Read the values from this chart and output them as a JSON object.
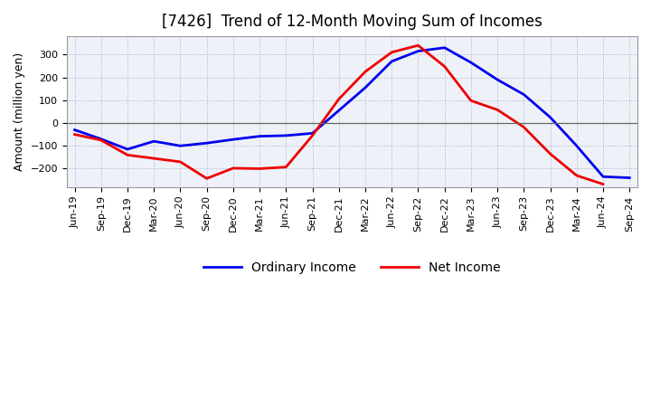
{
  "title": "[7426]  Trend of 12-Month Moving Sum of Incomes",
  "ylabel": "Amount (million yen)",
  "background_color": "#ffffff",
  "plot_bg_color": "#eef2f8",
  "grid_color": "#aaaacc",
  "x_labels": [
    "Jun-19",
    "Sep-19",
    "Dec-19",
    "Mar-20",
    "Jun-20",
    "Sep-20",
    "Dec-20",
    "Mar-21",
    "Jun-21",
    "Sep-21",
    "Dec-21",
    "Mar-22",
    "Jun-22",
    "Sep-22",
    "Dec-22",
    "Mar-23",
    "Jun-23",
    "Sep-23",
    "Dec-23",
    "Mar-24",
    "Jun-24",
    "Sep-24"
  ],
  "ordinary_income": [
    -30,
    -70,
    -115,
    -80,
    -100,
    -88,
    -72,
    -58,
    -55,
    -45,
    55,
    155,
    270,
    315,
    330,
    265,
    190,
    125,
    25,
    -100,
    -235,
    -240
  ],
  "net_income": [
    -50,
    -75,
    -140,
    -155,
    -170,
    -243,
    -198,
    -200,
    -193,
    -55,
    105,
    225,
    310,
    340,
    248,
    98,
    58,
    -18,
    -135,
    -230,
    -268,
    null
  ],
  "ylim": [
    -280,
    380
  ],
  "yticks": [
    -200,
    -100,
    0,
    100,
    200,
    300
  ],
  "ordinary_color": "#0000ee",
  "net_color": "#ee0000",
  "title_fontsize": 12,
  "axis_fontsize": 9,
  "tick_fontsize": 8,
  "line_width": 2.0,
  "legend_fontsize": 10
}
